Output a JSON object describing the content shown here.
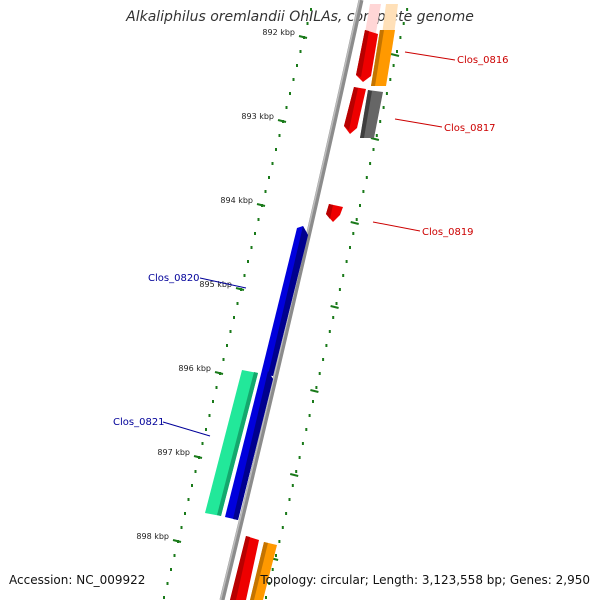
{
  "title": "Alkaliphilus oremlandii OhILAs, complete genome",
  "footer": {
    "accession": "Accession: NC_009922",
    "summary": "Topology: circular; Length: 3,123,558 bp; Genes: 2,950"
  },
  "ticks": [
    {
      "label": "892 kbp",
      "kbp": 892
    },
    {
      "label": "893 kbp",
      "kbp": 893
    },
    {
      "label": "894 kbp",
      "kbp": 894
    },
    {
      "label": "895 kbp",
      "kbp": 895
    },
    {
      "label": "896 kbp",
      "kbp": 896
    },
    {
      "label": "897 kbp",
      "kbp": 897
    },
    {
      "label": "898 kbp",
      "kbp": 898
    }
  ],
  "colors": {
    "backbone": "#8c8c8c",
    "tick": "#1a7a1a",
    "label_forward": "#cc0000",
    "label_reverse": "#000099",
    "red": "#ee0000",
    "pink": "#ffd6d6",
    "orange": "#ff9900",
    "peach": "#ffe0b8",
    "gray": "#666666",
    "blue": "#0000dd",
    "teal": "#22e89a"
  },
  "genes": [
    {
      "name": "Clos_0816",
      "strand": "+"
    },
    {
      "name": "Clos_0817",
      "strand": "+"
    },
    {
      "name": "Clos_0819",
      "strand": "+"
    },
    {
      "name": "Clos_0820",
      "strand": "-"
    },
    {
      "name": "Clos_0821",
      "strand": "-"
    }
  ]
}
